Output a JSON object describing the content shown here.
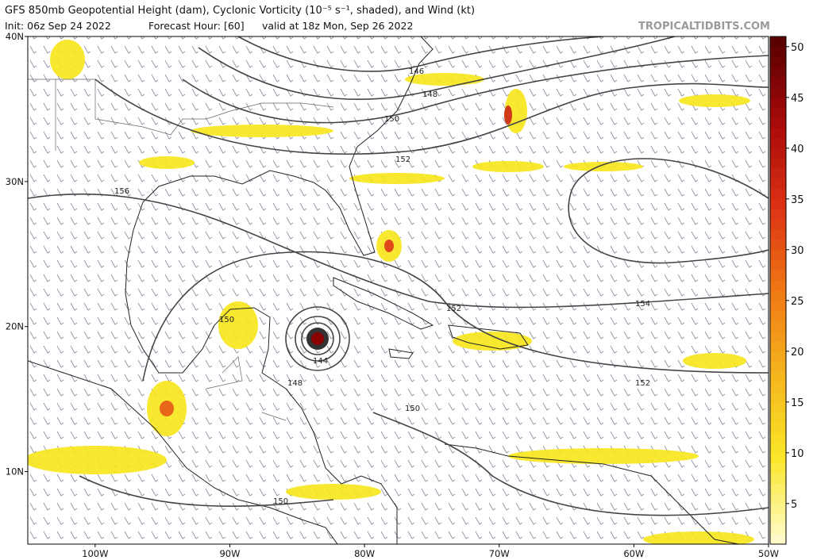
{
  "header": {
    "title": "GFS 850mb Geopotential Height (dam), Cyclonic Vorticity (10⁻⁵ s⁻¹, shaded), and Wind (kt)",
    "init": "Init: 06z Sep 24 2022",
    "forecast_hour": "Forecast Hour: [60]",
    "valid": "valid at 18z Mon, Sep 26 2022",
    "credit": "TROPICALTIDBITS.COM"
  },
  "map": {
    "lonlim": [
      -105,
      -50
    ],
    "latlim": [
      5,
      40
    ],
    "lonticks": [
      {
        "value": -100,
        "label": "100W"
      },
      {
        "value": -90,
        "label": "90W"
      },
      {
        "value": -80,
        "label": "80W"
      },
      {
        "value": -70,
        "label": "70W"
      },
      {
        "value": -60,
        "label": "60W"
      },
      {
        "value": -50,
        "label": "50W"
      }
    ],
    "latticks": [
      {
        "value": 40,
        "label": "40N"
      },
      {
        "value": 30,
        "label": "30N"
      },
      {
        "value": 20,
        "label": "20N"
      },
      {
        "value": 10,
        "label": "10N"
      }
    ],
    "contour_labels": [
      "146",
      "148",
      "150",
      "152",
      "156",
      "150",
      "144",
      "148",
      "150",
      "152",
      "154",
      "152",
      "150"
    ]
  },
  "colorbar": {
    "range": [
      1,
      51
    ],
    "ticks": [
      5,
      10,
      15,
      20,
      25,
      30,
      35,
      40,
      45,
      50
    ]
  }
}
